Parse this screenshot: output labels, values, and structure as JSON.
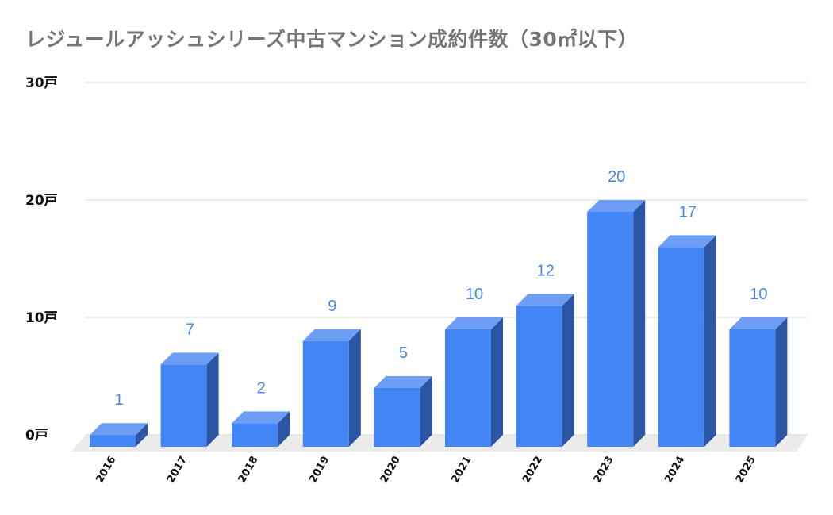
{
  "chart_data": {
    "type": "bar",
    "title": "レジュールアッシュシリーズ中古マンション成約件数（30㎡以下）",
    "categories": [
      "2016",
      "2017",
      "2018",
      "2019",
      "2020",
      "2021",
      "2022",
      "2023",
      "2024",
      "2025"
    ],
    "values": [
      1,
      7,
      2,
      9,
      5,
      10,
      12,
      20,
      17,
      10
    ],
    "y_ticks": [
      "0戸",
      "10戸",
      "20戸",
      "30戸"
    ],
    "ylim": [
      0,
      30
    ],
    "grid": true,
    "style": "3d-bar",
    "colors": {
      "bar_front": "#4285f4",
      "bar_top": "#6d9ef5",
      "bar_side": "#2c55a3",
      "data_label": "#4a86e8",
      "title": "#757575",
      "grid": "#d9d9d9",
      "floor": "#ebebeb"
    }
  }
}
